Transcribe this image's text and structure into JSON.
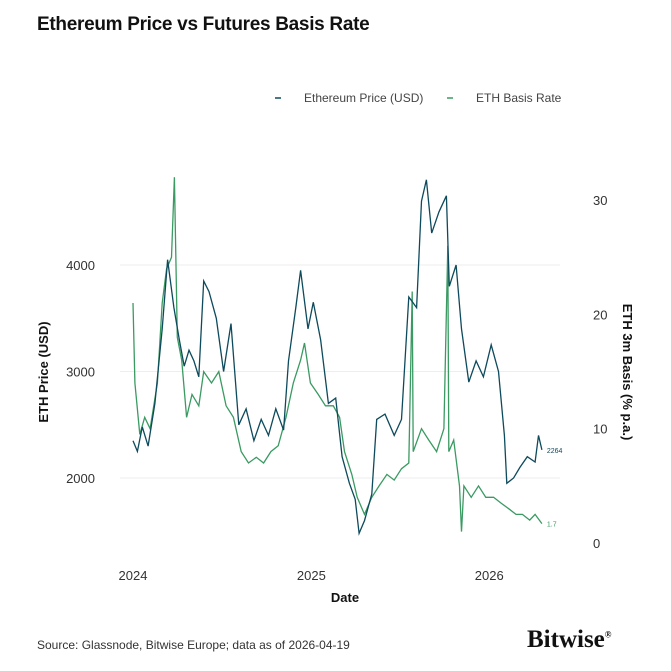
{
  "title": "Ethereum Price vs Futures Basis Rate",
  "source": "Source: Glassnode, Bitwise Europe; data as of 2026-04-19",
  "logo": "Bitwise®",
  "chart_data": {
    "type": "line",
    "title": "Ethereum Price vs Futures Basis Rate",
    "xlabel": "Date",
    "ylabel": "ETH Price (USD)",
    "y2label": "ETH 3m Basis (% p.a.)",
    "x_ticks": [
      "2024",
      "2025",
      "2026"
    ],
    "y_ticks": [
      2000,
      3000,
      4000
    ],
    "y2_ticks": [
      0,
      10,
      20,
      30
    ],
    "ylim": [
      1450,
      4800
    ],
    "y2lim": [
      0,
      32
    ],
    "xlim": [
      "2024-01-01",
      "2026-04-19"
    ],
    "grid": "horizontal",
    "legend_position": "top-right",
    "colors": {
      "price": "#0d4a5c",
      "basis": "#3a9a62"
    },
    "end_labels": {
      "price": "2264",
      "basis": "1.7"
    },
    "series": [
      {
        "name": "Ethereum Price (USD)",
        "axis": "left",
        "points": [
          [
            "2024-01-01",
            2350
          ],
          [
            "2024-01-10",
            2250
          ],
          [
            "2024-01-20",
            2480
          ],
          [
            "2024-02-01",
            2300
          ],
          [
            "2024-02-15",
            2700
          ],
          [
            "2024-03-01",
            3400
          ],
          [
            "2024-03-12",
            4050
          ],
          [
            "2024-03-25",
            3600
          ],
          [
            "2024-04-05",
            3300
          ],
          [
            "2024-04-15",
            3050
          ],
          [
            "2024-04-25",
            3200
          ],
          [
            "2024-05-05",
            3100
          ],
          [
            "2024-05-15",
            2950
          ],
          [
            "2024-05-25",
            3850
          ],
          [
            "2024-06-05",
            3750
          ],
          [
            "2024-06-20",
            3500
          ],
          [
            "2024-07-05",
            3000
          ],
          [
            "2024-07-20",
            3450
          ],
          [
            "2024-08-05",
            2500
          ],
          [
            "2024-08-20",
            2650
          ],
          [
            "2024-09-05",
            2350
          ],
          [
            "2024-09-20",
            2550
          ],
          [
            "2024-10-05",
            2400
          ],
          [
            "2024-10-20",
            2650
          ],
          [
            "2024-11-05",
            2450
          ],
          [
            "2024-11-15",
            3100
          ],
          [
            "2024-11-30",
            3600
          ],
          [
            "2024-12-10",
            3950
          ],
          [
            "2024-12-25",
            3400
          ],
          [
            "2025-01-05",
            3650
          ],
          [
            "2025-01-20",
            3300
          ],
          [
            "2025-02-05",
            2700
          ],
          [
            "2025-02-20",
            2750
          ],
          [
            "2025-03-05",
            2200
          ],
          [
            "2025-03-20",
            1950
          ],
          [
            "2025-04-01",
            1800
          ],
          [
            "2025-04-09",
            1480
          ],
          [
            "2025-04-20",
            1600
          ],
          [
            "2025-05-05",
            1850
          ],
          [
            "2025-05-15",
            2550
          ],
          [
            "2025-06-01",
            2600
          ],
          [
            "2025-06-20",
            2400
          ],
          [
            "2025-07-05",
            2550
          ],
          [
            "2025-07-20",
            3700
          ],
          [
            "2025-08-05",
            3600
          ],
          [
            "2025-08-15",
            4600
          ],
          [
            "2025-08-25",
            4800
          ],
          [
            "2025-09-05",
            4300
          ],
          [
            "2025-09-20",
            4500
          ],
          [
            "2025-10-05",
            4650
          ],
          [
            "2025-10-11",
            3800
          ],
          [
            "2025-10-25",
            4000
          ],
          [
            "2025-11-05",
            3400
          ],
          [
            "2025-11-20",
            2900
          ],
          [
            "2025-12-05",
            3100
          ],
          [
            "2025-12-20",
            2950
          ],
          [
            "2026-01-05",
            3250
          ],
          [
            "2026-01-20",
            3000
          ],
          [
            "2026-02-01",
            2400
          ],
          [
            "2026-02-06",
            1950
          ],
          [
            "2026-02-20",
            2000
          ],
          [
            "2026-03-05",
            2100
          ],
          [
            "2026-03-20",
            2200
          ],
          [
            "2026-04-05",
            2150
          ],
          [
            "2026-04-12",
            2400
          ],
          [
            "2026-04-19",
            2264
          ]
        ]
      },
      {
        "name": "ETH Basis Rate",
        "axis": "right",
        "points": [
          [
            "2024-01-01",
            21
          ],
          [
            "2024-01-05",
            14
          ],
          [
            "2024-01-15",
            9.5
          ],
          [
            "2024-01-25",
            11
          ],
          [
            "2024-02-05",
            10
          ],
          [
            "2024-02-20",
            14
          ],
          [
            "2024-03-01",
            21
          ],
          [
            "2024-03-10",
            24
          ],
          [
            "2024-03-20",
            25
          ],
          [
            "2024-03-26",
            32
          ],
          [
            "2024-04-01",
            18
          ],
          [
            "2024-04-10",
            16
          ],
          [
            "2024-04-20",
            11
          ],
          [
            "2024-05-01",
            13
          ],
          [
            "2024-05-15",
            12
          ],
          [
            "2024-05-25",
            15
          ],
          [
            "2024-06-10",
            14
          ],
          [
            "2024-06-25",
            15
          ],
          [
            "2024-07-10",
            12
          ],
          [
            "2024-07-25",
            11
          ],
          [
            "2024-08-10",
            8
          ],
          [
            "2024-08-25",
            7
          ],
          [
            "2024-09-10",
            7.5
          ],
          [
            "2024-09-25",
            7
          ],
          [
            "2024-10-10",
            8
          ],
          [
            "2024-10-25",
            8.5
          ],
          [
            "2024-11-10",
            11
          ],
          [
            "2024-11-25",
            14
          ],
          [
            "2024-12-10",
            16
          ],
          [
            "2024-12-18",
            17.5
          ],
          [
            "2024-12-30",
            14
          ],
          [
            "2025-01-15",
            13
          ],
          [
            "2025-01-30",
            12
          ],
          [
            "2025-02-15",
            12
          ],
          [
            "2025-02-28",
            11
          ],
          [
            "2025-03-10",
            8
          ],
          [
            "2025-03-25",
            6
          ],
          [
            "2025-04-05",
            4
          ],
          [
            "2025-04-20",
            2.5
          ],
          [
            "2025-05-05",
            4
          ],
          [
            "2025-05-20",
            5
          ],
          [
            "2025-06-05",
            6
          ],
          [
            "2025-06-20",
            5.5
          ],
          [
            "2025-07-05",
            6.5
          ],
          [
            "2025-07-20",
            7
          ],
          [
            "2025-07-27",
            22
          ],
          [
            "2025-07-29",
            8
          ],
          [
            "2025-08-15",
            10
          ],
          [
            "2025-08-30",
            9
          ],
          [
            "2025-09-15",
            8
          ],
          [
            "2025-09-30",
            10
          ],
          [
            "2025-10-08",
            26
          ],
          [
            "2025-10-10",
            8
          ],
          [
            "2025-10-20",
            9
          ],
          [
            "2025-11-01",
            5
          ],
          [
            "2025-11-05",
            1
          ],
          [
            "2025-11-10",
            5
          ],
          [
            "2025-11-25",
            4
          ],
          [
            "2025-12-10",
            5
          ],
          [
            "2025-12-25",
            4
          ],
          [
            "2026-01-10",
            4
          ],
          [
            "2026-01-25",
            3.5
          ],
          [
            "2026-02-10",
            3
          ],
          [
            "2026-02-25",
            2.5
          ],
          [
            "2026-03-10",
            2.5
          ],
          [
            "2026-03-25",
            2
          ],
          [
            "2026-04-05",
            2.5
          ],
          [
            "2026-04-19",
            1.7
          ]
        ]
      }
    ]
  }
}
